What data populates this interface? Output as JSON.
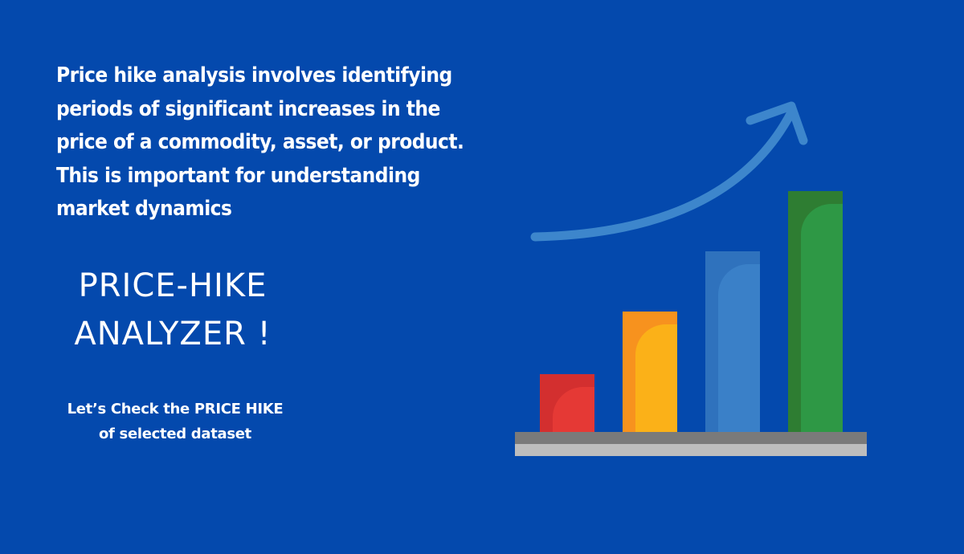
{
  "intro": {
    "lines": [
      "Price hike analysis involves identifying",
      "periods of significant increases in the",
      "price of a commodity, asset, or product.",
      "This is important for understanding",
      "market dynamics"
    ]
  },
  "title": {
    "line1": "PRICE-HIKE",
    "line2": "ANALYZER !"
  },
  "cta": {
    "line1": "Let’s Check the PRICE HIKE",
    "line2": "of selected dataset"
  },
  "illustration": {
    "icon": "growth-chart-icon",
    "bar_levels": [
      0.24,
      0.5,
      0.75,
      1.0
    ],
    "bar_colors": [
      {
        "main": "#e53935",
        "dark": "#d32f2f"
      },
      {
        "main": "#fbb118",
        "dark": "#f7921e"
      },
      {
        "main": "#3a80c8",
        "dark": "#2f72bd"
      },
      {
        "main": "#2e9845",
        "dark": "#2e7d32"
      }
    ],
    "arrow_color": "#3d86cc",
    "base_top_color": "#7a7a7a",
    "base_bottom_color": "#bdbdbd",
    "background": "#0449ad"
  }
}
